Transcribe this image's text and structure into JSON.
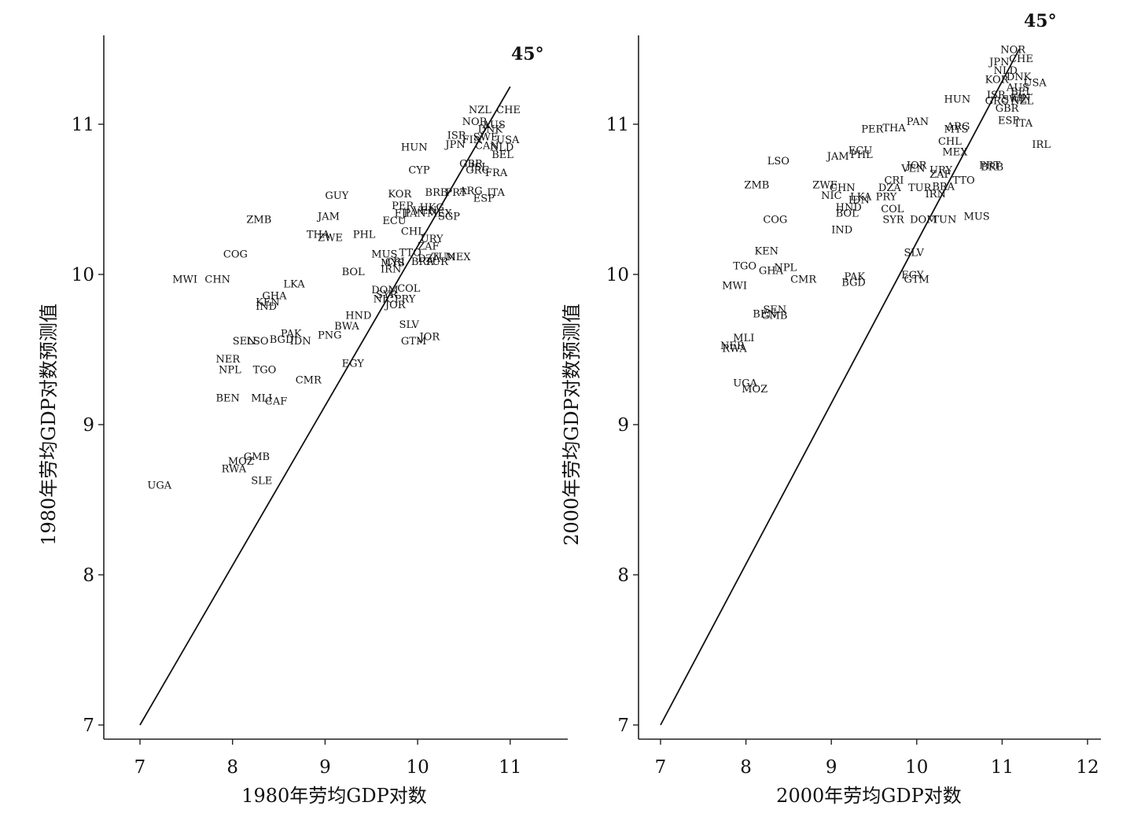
{
  "chart_data": [
    {
      "type": "scatter",
      "xlabel": "1980年劳均GDP对数",
      "ylabel": "1980年劳均GDP对数预测值",
      "xlim": [
        6.6,
        11.6
      ],
      "ylim": [
        6.9,
        11.6
      ],
      "xticks": [
        7,
        8,
        9,
        10,
        11
      ],
      "yticks": [
        7,
        8,
        9,
        10,
        11
      ],
      "reference_line": {
        "label": "45°",
        "from": [
          7.0,
          7.0
        ],
        "to": [
          11.0,
          11.25
        ]
      },
      "points": [
        {
          "label": "NZL",
          "x": 10.55,
          "y": 11.1
        },
        {
          "label": "CHE",
          "x": 10.85,
          "y": 11.1
        },
        {
          "label": "NOR",
          "x": 10.48,
          "y": 11.02
        },
        {
          "label": "AUS",
          "x": 10.7,
          "y": 11.0
        },
        {
          "label": "DNK",
          "x": 10.65,
          "y": 10.97
        },
        {
          "label": "ISR",
          "x": 10.32,
          "y": 10.93
        },
        {
          "label": "FIN",
          "x": 10.48,
          "y": 10.9
        },
        {
          "label": "SWE",
          "x": 10.6,
          "y": 10.92
        },
        {
          "label": "USA",
          "x": 10.85,
          "y": 10.9
        },
        {
          "label": "JPN",
          "x": 10.3,
          "y": 10.87
        },
        {
          "label": "CAN",
          "x": 10.62,
          "y": 10.86
        },
        {
          "label": "NLD",
          "x": 10.78,
          "y": 10.85
        },
        {
          "label": "BEL",
          "x": 10.8,
          "y": 10.8
        },
        {
          "label": "HUN",
          "x": 9.82,
          "y": 10.85
        },
        {
          "label": "GBR",
          "x": 10.45,
          "y": 10.74
        },
        {
          "label": "ISL",
          "x": 10.57,
          "y": 10.72
        },
        {
          "label": "GRC",
          "x": 10.52,
          "y": 10.7
        },
        {
          "label": "FRA",
          "x": 10.73,
          "y": 10.68
        },
        {
          "label": "CYP",
          "x": 9.9,
          "y": 10.7
        },
        {
          "label": "GUY",
          "x": 9.0,
          "y": 10.53
        },
        {
          "label": "KOR",
          "x": 9.68,
          "y": 10.54
        },
        {
          "label": "BRB",
          "x": 10.08,
          "y": 10.55
        },
        {
          "label": "PRT",
          "x": 10.3,
          "y": 10.55
        },
        {
          "label": "ARG",
          "x": 10.45,
          "y": 10.56
        },
        {
          "label": "ITA",
          "x": 10.75,
          "y": 10.55
        },
        {
          "label": "ESP",
          "x": 10.6,
          "y": 10.51
        },
        {
          "label": "PER",
          "x": 9.72,
          "y": 10.46
        },
        {
          "label": "HKG",
          "x": 10.02,
          "y": 10.45
        },
        {
          "label": "VEN",
          "x": 9.95,
          "y": 10.43
        },
        {
          "label": "FJI",
          "x": 9.75,
          "y": 10.41
        },
        {
          "label": "PAN",
          "x": 9.85,
          "y": 10.41
        },
        {
          "label": "SGP",
          "x": 10.22,
          "y": 10.39
        },
        {
          "label": "MEX",
          "x": 10.1,
          "y": 10.41
        },
        {
          "label": "ZMB",
          "x": 8.15,
          "y": 10.37
        },
        {
          "label": "JAM",
          "x": 8.92,
          "y": 10.39
        },
        {
          "label": "ECU",
          "x": 9.62,
          "y": 10.36
        },
        {
          "label": "THA",
          "x": 8.8,
          "y": 10.27
        },
        {
          "label": "ZWE",
          "x": 8.92,
          "y": 10.25
        },
        {
          "label": "PHL",
          "x": 9.3,
          "y": 10.27
        },
        {
          "label": "CHL",
          "x": 9.82,
          "y": 10.29
        },
        {
          "label": "URY",
          "x": 10.03,
          "y": 10.24
        },
        {
          "label": "ZAF",
          "x": 10.0,
          "y": 10.19
        },
        {
          "label": "COG",
          "x": 7.9,
          "y": 10.14
        },
        {
          "label": "MUS",
          "x": 9.5,
          "y": 10.14
        },
        {
          "label": "TTO",
          "x": 9.8,
          "y": 10.15
        },
        {
          "label": "CRI",
          "x": 9.65,
          "y": 10.09
        },
        {
          "label": "DZA",
          "x": 10.0,
          "y": 10.11
        },
        {
          "label": "TUN",
          "x": 10.15,
          "y": 10.12
        },
        {
          "label": "MEX",
          "x": 10.3,
          "y": 10.12
        },
        {
          "label": "MYS",
          "x": 9.6,
          "y": 10.08
        },
        {
          "label": "BRA",
          "x": 9.93,
          "y": 10.09
        },
        {
          "label": "TUR",
          "x": 10.08,
          "y": 10.09
        },
        {
          "label": "IRN",
          "x": 9.6,
          "y": 10.04
        },
        {
          "label": "BOL",
          "x": 9.18,
          "y": 10.02
        },
        {
          "label": "MWI",
          "x": 7.35,
          "y": 9.97
        },
        {
          "label": "CHN",
          "x": 7.7,
          "y": 9.97
        },
        {
          "label": "LKA",
          "x": 8.55,
          "y": 9.94
        },
        {
          "label": "DOM",
          "x": 9.5,
          "y": 9.9
        },
        {
          "label": "COL",
          "x": 9.78,
          "y": 9.91
        },
        {
          "label": "SYR",
          "x": 9.55,
          "y": 9.87
        },
        {
          "label": "NIC",
          "x": 9.52,
          "y": 9.84
        },
        {
          "label": "PRY",
          "x": 9.75,
          "y": 9.84
        },
        {
          "label": "JOR",
          "x": 9.65,
          "y": 9.8
        },
        {
          "label": "GHA",
          "x": 8.32,
          "y": 9.86
        },
        {
          "label": "KEN",
          "x": 8.25,
          "y": 9.82
        },
        {
          "label": "IND",
          "x": 8.25,
          "y": 9.79
        },
        {
          "label": "HND",
          "x": 9.22,
          "y": 9.73
        },
        {
          "label": "SLV",
          "x": 9.8,
          "y": 9.67
        },
        {
          "label": "BWA",
          "x": 9.1,
          "y": 9.66
        },
        {
          "label": "PAK",
          "x": 8.52,
          "y": 9.61
        },
        {
          "label": "PNG",
          "x": 8.92,
          "y": 9.6
        },
        {
          "label": "JOR",
          "x": 10.02,
          "y": 9.59
        },
        {
          "label": "SEN",
          "x": 8.0,
          "y": 9.56
        },
        {
          "label": "LSO",
          "x": 8.15,
          "y": 9.56
        },
        {
          "label": "BGD",
          "x": 8.4,
          "y": 9.57
        },
        {
          "label": "IDN",
          "x": 8.62,
          "y": 9.56
        },
        {
          "label": "GTM",
          "x": 9.82,
          "y": 9.56
        },
        {
          "label": "NER",
          "x": 7.82,
          "y": 9.44
        },
        {
          "label": "EGY",
          "x": 9.18,
          "y": 9.41
        },
        {
          "label": "NPL",
          "x": 7.85,
          "y": 9.37
        },
        {
          "label": "TGO",
          "x": 8.22,
          "y": 9.37
        },
        {
          "label": "CMR",
          "x": 8.68,
          "y": 9.3
        },
        {
          "label": "BEN",
          "x": 7.82,
          "y": 9.18
        },
        {
          "label": "MLI",
          "x": 8.2,
          "y": 9.18
        },
        {
          "label": "CAF",
          "x": 8.35,
          "y": 9.16
        },
        {
          "label": "GMB",
          "x": 8.12,
          "y": 8.79
        },
        {
          "label": "MOZ",
          "x": 7.95,
          "y": 8.76
        },
        {
          "label": "RWA",
          "x": 7.88,
          "y": 8.71
        },
        {
          "label": "SLE",
          "x": 8.2,
          "y": 8.63
        },
        {
          "label": "UGA",
          "x": 7.08,
          "y": 8.6
        }
      ]
    },
    {
      "type": "scatter",
      "xlabel": "2000年劳均GDP对数",
      "ylabel": "2000年劳均GDP对数预测值",
      "xlim": [
        6.6,
        12.15
      ],
      "ylim": [
        6.9,
        11.6
      ],
      "xticks": [
        7,
        8,
        9,
        10,
        11,
        12
      ],
      "yticks": [
        7,
        8,
        9,
        10,
        11
      ],
      "reference_line": {
        "label": "45°",
        "from": [
          7.0,
          7.0
        ],
        "to": [
          11.2,
          11.5
        ]
      },
      "points": [
        {
          "label": "NOR",
          "x": 10.98,
          "y": 11.5
        },
        {
          "label": "CHE",
          "x": 11.08,
          "y": 11.44
        },
        {
          "label": "JPN",
          "x": 10.85,
          "y": 11.42
        },
        {
          "label": "NLD",
          "x": 10.9,
          "y": 11.36
        },
        {
          "label": "KOR",
          "x": 10.8,
          "y": 11.3
        },
        {
          "label": "DNK",
          "x": 11.05,
          "y": 11.32
        },
        {
          "label": "USA",
          "x": 11.25,
          "y": 11.28
        },
        {
          "label": "AUS",
          "x": 11.05,
          "y": 11.25
        },
        {
          "label": "BEL",
          "x": 11.1,
          "y": 11.22
        },
        {
          "label": "FIN",
          "x": 11.1,
          "y": 11.18
        },
        {
          "label": "HUN",
          "x": 10.32,
          "y": 11.17
        },
        {
          "label": "ISR",
          "x": 10.82,
          "y": 11.2
        },
        {
          "label": "GRC",
          "x": 10.8,
          "y": 11.16
        },
        {
          "label": "SWE",
          "x": 11.0,
          "y": 11.17
        },
        {
          "label": "NZL",
          "x": 11.1,
          "y": 11.16
        },
        {
          "label": "GBR",
          "x": 10.92,
          "y": 11.11
        },
        {
          "label": "ESP",
          "x": 10.95,
          "y": 11.03
        },
        {
          "label": "ITA",
          "x": 11.15,
          "y": 11.01
        },
        {
          "label": "PAN",
          "x": 9.88,
          "y": 11.02
        },
        {
          "label": "PER",
          "x": 9.35,
          "y": 10.97
        },
        {
          "label": "THA",
          "x": 9.6,
          "y": 10.98
        },
        {
          "label": "ARG",
          "x": 10.35,
          "y": 10.99
        },
        {
          "label": "MYS",
          "x": 10.32,
          "y": 10.97
        },
        {
          "label": "IRL",
          "x": 11.35,
          "y": 10.87
        },
        {
          "label": "CHL",
          "x": 10.25,
          "y": 10.89
        },
        {
          "label": "ECU",
          "x": 9.2,
          "y": 10.83
        },
        {
          "label": "MEX",
          "x": 10.3,
          "y": 10.82
        },
        {
          "label": "JAM",
          "x": 8.95,
          "y": 10.79
        },
        {
          "label": "PHL",
          "x": 9.22,
          "y": 10.8
        },
        {
          "label": "LSO",
          "x": 8.25,
          "y": 10.76
        },
        {
          "label": "JOR",
          "x": 9.88,
          "y": 10.73
        },
        {
          "label": "VEN",
          "x": 9.82,
          "y": 10.71
        },
        {
          "label": "URY",
          "x": 10.15,
          "y": 10.7
        },
        {
          "label": "PRT",
          "x": 10.73,
          "y": 10.73
        },
        {
          "label": "BRB",
          "x": 10.75,
          "y": 10.72
        },
        {
          "label": "ZAF",
          "x": 10.15,
          "y": 10.67
        },
        {
          "label": "TTO",
          "x": 10.42,
          "y": 10.63
        },
        {
          "label": "CRI",
          "x": 9.62,
          "y": 10.63
        },
        {
          "label": "BRA",
          "x": 10.18,
          "y": 10.59
        },
        {
          "label": "ZMB",
          "x": 7.98,
          "y": 10.6
        },
        {
          "label": "ZWE",
          "x": 8.78,
          "y": 10.6
        },
        {
          "label": "CHN",
          "x": 8.98,
          "y": 10.58
        },
        {
          "label": "DZA",
          "x": 9.55,
          "y": 10.58
        },
        {
          "label": "TUR",
          "x": 9.9,
          "y": 10.58
        },
        {
          "label": "IRN",
          "x": 10.1,
          "y": 10.54
        },
        {
          "label": "NIC",
          "x": 8.88,
          "y": 10.53
        },
        {
          "label": "LKA",
          "x": 9.22,
          "y": 10.52
        },
        {
          "label": "IDN",
          "x": 9.2,
          "y": 10.5
        },
        {
          "label": "PRY",
          "x": 9.52,
          "y": 10.52
        },
        {
          "label": "HND",
          "x": 9.05,
          "y": 10.45
        },
        {
          "label": "COL",
          "x": 9.58,
          "y": 10.44
        },
        {
          "label": "BOL",
          "x": 9.05,
          "y": 10.41
        },
        {
          "label": "COG",
          "x": 8.2,
          "y": 10.37
        },
        {
          "label": "SYR",
          "x": 9.6,
          "y": 10.37
        },
        {
          "label": "DOM",
          "x": 9.92,
          "y": 10.37
        },
        {
          "label": "TUN",
          "x": 10.18,
          "y": 10.37
        },
        {
          "label": "MUS",
          "x": 10.55,
          "y": 10.39
        },
        {
          "label": "IND",
          "x": 9.0,
          "y": 10.3
        },
        {
          "label": "KEN",
          "x": 8.1,
          "y": 10.16
        },
        {
          "label": "SLV",
          "x": 9.85,
          "y": 10.15
        },
        {
          "label": "TGO",
          "x": 7.85,
          "y": 10.06
        },
        {
          "label": "NPL",
          "x": 8.33,
          "y": 10.05
        },
        {
          "label": "GHA",
          "x": 8.15,
          "y": 10.03
        },
        {
          "label": "CMR",
          "x": 8.52,
          "y": 9.97
        },
        {
          "label": "PAK",
          "x": 9.15,
          "y": 9.99
        },
        {
          "label": "EGY",
          "x": 9.82,
          "y": 10.0
        },
        {
          "label": "BGD",
          "x": 9.12,
          "y": 9.95
        },
        {
          "label": "GTM",
          "x": 9.85,
          "y": 9.97
        },
        {
          "label": "MWI",
          "x": 7.72,
          "y": 9.93
        },
        {
          "label": "SEN",
          "x": 8.2,
          "y": 9.77
        },
        {
          "label": "BEN",
          "x": 8.08,
          "y": 9.74
        },
        {
          "label": "GMB",
          "x": 8.18,
          "y": 9.73
        },
        {
          "label": "MLI",
          "x": 7.85,
          "y": 9.58
        },
        {
          "label": "NER",
          "x": 7.7,
          "y": 9.53
        },
        {
          "label": "RWA",
          "x": 7.72,
          "y": 9.51
        },
        {
          "label": "UGA",
          "x": 7.85,
          "y": 9.28
        },
        {
          "label": "MOZ",
          "x": 7.95,
          "y": 9.24
        }
      ]
    }
  ]
}
